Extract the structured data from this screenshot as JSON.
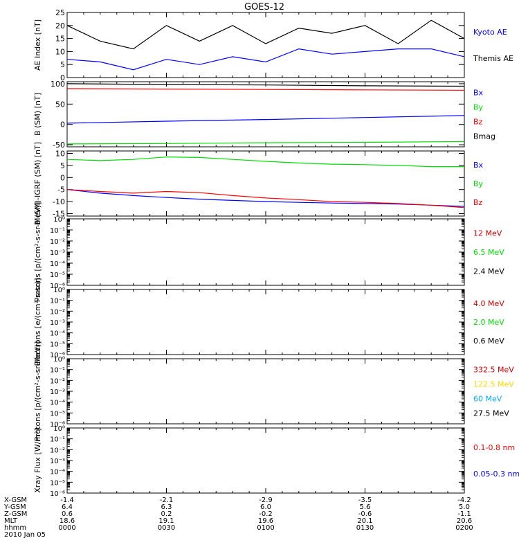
{
  "title": "GOES-12",
  "colors": {
    "axis": "#000000",
    "black": "#000000",
    "blue": "#0000ff",
    "red": "#ff0000",
    "green": "#00dd00",
    "darkred": "#cc0000",
    "gold": "#ffd700",
    "cyan": "#00aaff"
  },
  "chart_data": [
    {
      "type": "line",
      "ylabel": "AE Index [nT]",
      "ylim": [
        0,
        25
      ],
      "yticks": [
        "0",
        "5",
        "10",
        "15",
        "20",
        "25"
      ],
      "x_minutes": [
        0,
        10,
        20,
        30,
        40,
        50,
        60,
        70,
        80,
        90,
        100,
        110,
        120
      ],
      "series": [
        {
          "name": "Kyoto AE",
          "color": "blue_label_black_line",
          "values": [
            20,
            14,
            11,
            20,
            14,
            20,
            13,
            19,
            17,
            20,
            13,
            22,
            15
          ]
        },
        {
          "name": "Themis AE",
          "values": [
            7,
            6,
            3,
            7,
            5,
            8,
            6,
            11,
            9,
            10,
            11,
            11,
            8
          ]
        }
      ],
      "legend": [
        "Kyoto AE",
        "Themis AE"
      ]
    },
    {
      "type": "line",
      "ylabel": "B (SM) [nT]",
      "ylim": [
        -55,
        105
      ],
      "yticks": [
        "-50",
        "0",
        "50",
        "100"
      ],
      "x_minutes": [
        0,
        30,
        60,
        90,
        120
      ],
      "series": [
        {
          "name": "Bx",
          "values": [
            3,
            8,
            12,
            17,
            22
          ]
        },
        {
          "name": "By",
          "values": [
            -48,
            -47,
            -45,
            -44,
            -42
          ]
        },
        {
          "name": "Bz",
          "values": [
            88,
            87,
            86,
            85,
            84
          ]
        },
        {
          "name": "Bmag",
          "values": [
            100,
            98,
            97,
            95,
            94
          ]
        }
      ],
      "legend": [
        "Bx",
        "By",
        "Bz",
        "Bmag"
      ]
    },
    {
      "type": "line",
      "ylabel": "B (SM)-IGRF (SM) [nT]",
      "ylim": [
        -16,
        11
      ],
      "yticks": [
        "-15",
        "-10",
        "-5",
        "0",
        "5",
        "10"
      ],
      "x_minutes": [
        0,
        10,
        20,
        30,
        40,
        50,
        60,
        70,
        80,
        90,
        100,
        110,
        120
      ],
      "series": [
        {
          "name": "Bx",
          "values": [
            -5,
            -6.5,
            -7.5,
            -8.3,
            -9,
            -9.5,
            -10,
            -10.3,
            -10.6,
            -10.8,
            -11,
            -11.5,
            -12
          ]
        },
        {
          "name": "By",
          "values": [
            7.5,
            7,
            7.5,
            8.5,
            8.3,
            7.5,
            6.7,
            6,
            5.5,
            5.3,
            5,
            4.5,
            4.5
          ]
        },
        {
          "name": "Bz",
          "values": [
            -5,
            -5.8,
            -6.5,
            -5.8,
            -6.3,
            -7.5,
            -8.5,
            -9.2,
            -10,
            -10.3,
            -10.8,
            -11.5,
            -12.5
          ]
        }
      ],
      "legend": [
        "Bx",
        "By",
        "Bz"
      ]
    },
    {
      "type": "line",
      "ylabel": "Protons [p/(cm²-s-sr-MeV)]",
      "scale": "log",
      "ylim": [
        "1e-6",
        "1e0"
      ],
      "yticks": [
        "10⁻⁶",
        "10⁻⁵",
        "10⁻⁴",
        "10⁻³",
        "10⁻²",
        "10⁻¹",
        "10⁰"
      ],
      "series": [],
      "legend": [
        "12 MeV",
        "6.5 MeV",
        "2.4 MeV"
      ]
    },
    {
      "type": "line",
      "ylabel": "Electrons [e/(cm²-s-sr)]",
      "scale": "log",
      "ylim": [
        "1e-6",
        "1e0"
      ],
      "yticks": [
        "10⁻⁶",
        "10⁻⁵",
        "10⁻⁴",
        "10⁻³",
        "10⁻²",
        "10⁻¹",
        "10⁰"
      ],
      "series": [],
      "legend": [
        "4.0 MeV",
        "2.0 MeV",
        "0.6 MeV"
      ]
    },
    {
      "type": "line",
      "ylabel": "Protons [p/(cm²-s-sr-MeV)]",
      "scale": "log",
      "ylim": [
        "1e-6",
        "1e0"
      ],
      "yticks": [
        "10⁻⁶",
        "10⁻⁵",
        "10⁻⁴",
        "10⁻³",
        "10⁻²",
        "10⁻¹",
        "10⁰"
      ],
      "series": [],
      "legend": [
        "332.5 MeV",
        "122.5 MeV",
        "60 MeV",
        "27.5 MeV"
      ]
    },
    {
      "type": "line",
      "ylabel": "Xray Flux [W/m²]",
      "scale": "log",
      "ylim": [
        "1e-6",
        "1e0"
      ],
      "yticks": [
        "10⁻⁶",
        "10⁻⁵",
        "10⁻⁴",
        "10⁻³",
        "10⁻²",
        "10⁻¹",
        "10⁰"
      ],
      "series": [],
      "legend": [
        "0.1-0.8 nm",
        "0.05-0.3 nm"
      ]
    }
  ],
  "xaxis": {
    "row_labels": [
      "X-GSM",
      "Y-GSM",
      "Z-GSM",
      "MLT",
      "hhmm",
      "2010 Jan 05"
    ],
    "columns": [
      {
        "x_gsm": "-1.4",
        "y_gsm": "6.4",
        "z_gsm": "0.6",
        "mlt": "18.6",
        "hhmm": "0000"
      },
      {
        "x_gsm": "-2.1",
        "y_gsm": "6.3",
        "z_gsm": "0.2",
        "mlt": "19.1",
        "hhmm": "0030"
      },
      {
        "x_gsm": "-2.9",
        "y_gsm": "6.0",
        "z_gsm": "-0.2",
        "mlt": "19.6",
        "hhmm": "0100"
      },
      {
        "x_gsm": "-3.5",
        "y_gsm": "5.6",
        "z_gsm": "-0.6",
        "mlt": "20.1",
        "hhmm": "0130"
      },
      {
        "x_gsm": "-4.2",
        "y_gsm": "5.0",
        "z_gsm": "-1.1",
        "mlt": "20.6",
        "hhmm": "0200"
      }
    ]
  }
}
